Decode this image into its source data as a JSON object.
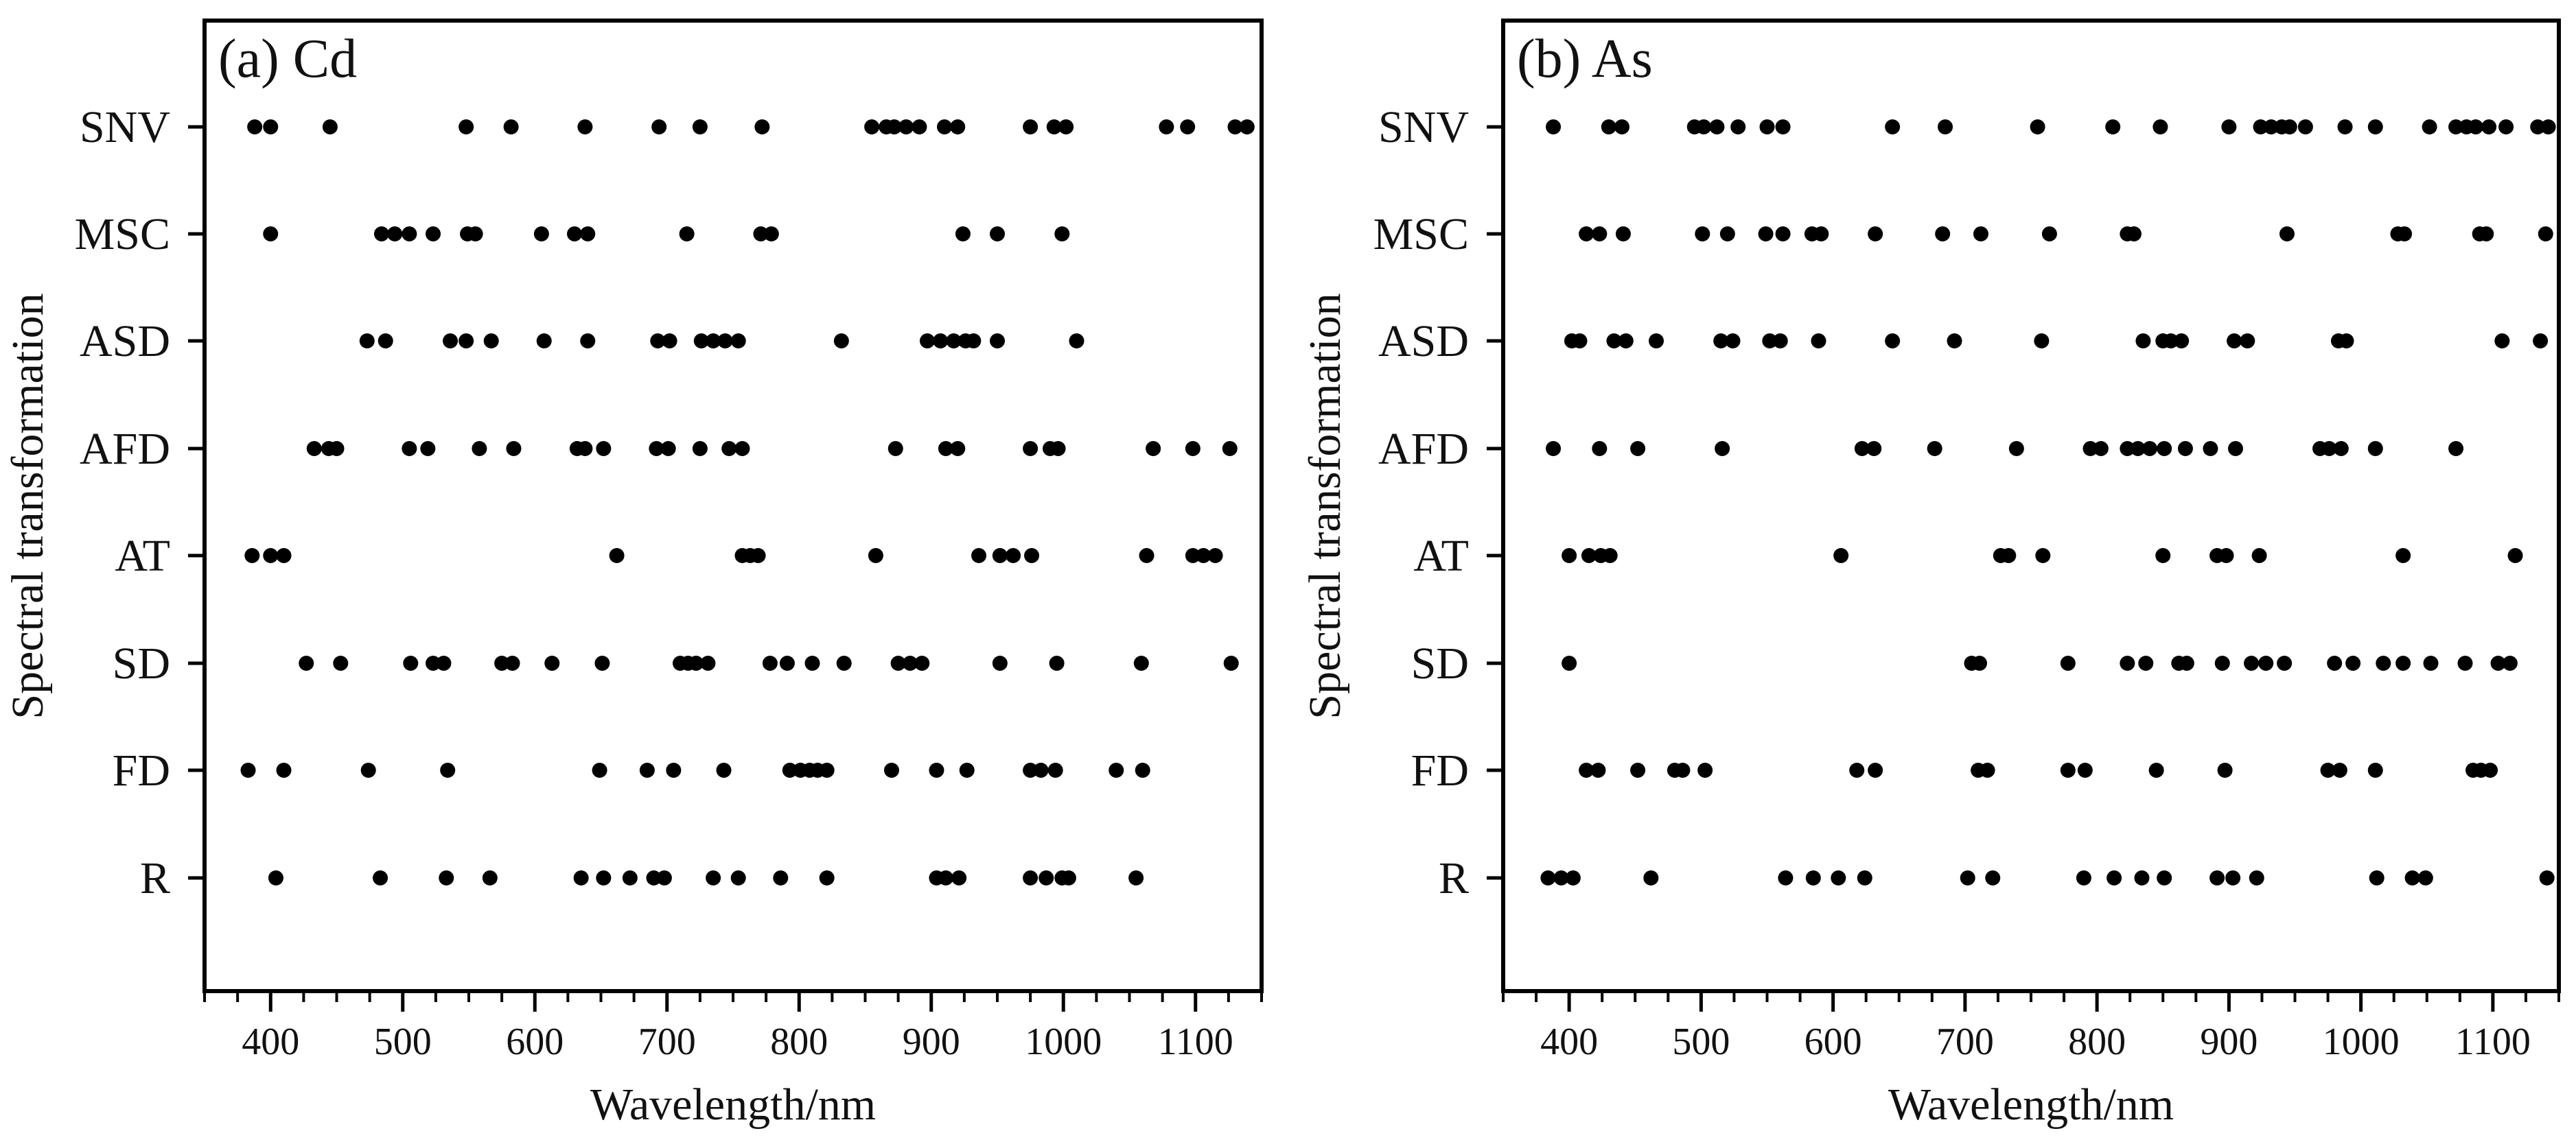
{
  "chart_data": [
    {
      "type": "scatter",
      "title": "(a) Cd",
      "xlabel": "Wavelength/nm",
      "ylabel": "Spectral transformation",
      "xlim": [
        350,
        1150
      ],
      "xticks": [
        400,
        500,
        600,
        700,
        800,
        900,
        1000,
        1100
      ],
      "categories": [
        "SNV",
        "MSC",
        "ASD",
        "AFD",
        "AT",
        "SD",
        "FD",
        "R"
      ],
      "grid": false,
      "series": [
        {
          "category": "SNV",
          "x": [
            388,
            400,
            445,
            548,
            582,
            638,
            694,
            725,
            772,
            855,
            866,
            872,
            881,
            891,
            910,
            920,
            975,
            993,
            1002,
            1078,
            1094,
            1130,
            1139
          ]
        },
        {
          "category": "MSC",
          "x": [
            400,
            484,
            494,
            505,
            523,
            549,
            555,
            605,
            630,
            640,
            715,
            771,
            779,
            924,
            950,
            999
          ]
        },
        {
          "category": "ASD",
          "x": [
            473,
            487,
            536,
            548,
            567,
            607,
            640,
            693,
            702,
            726,
            735,
            744,
            754,
            832,
            897,
            907,
            917,
            926,
            932,
            950,
            1010
          ]
        },
        {
          "category": "AFD",
          "x": [
            433,
            444,
            450,
            505,
            519,
            558,
            584,
            632,
            638,
            652,
            692,
            701,
            725,
            747,
            757,
            873,
            911,
            920,
            975,
            990,
            996,
            1068,
            1098,
            1126
          ]
        },
        {
          "category": "AT",
          "x": [
            386,
            400,
            410,
            662,
            757,
            763,
            769,
            858,
            936,
            952,
            962,
            976,
            1063,
            1098,
            1106,
            1115
          ]
        },
        {
          "category": "SD",
          "x": [
            427,
            453,
            506,
            523,
            531,
            575,
            583,
            613,
            651,
            710,
            716,
            722,
            731,
            778,
            791,
            810,
            834,
            875,
            884,
            893,
            952,
            995,
            1059,
            1127
          ]
        },
        {
          "category": "FD",
          "x": [
            383,
            410,
            474,
            534,
            649,
            685,
            705,
            743,
            793,
            801,
            808,
            814,
            821,
            870,
            904,
            927,
            975,
            983,
            994,
            1040,
            1060
          ]
        },
        {
          "category": "R",
          "x": [
            404,
            483,
            533,
            566,
            635,
            652,
            672,
            690,
            698,
            735,
            754,
            786,
            821,
            904,
            911,
            921,
            975,
            987,
            999,
            1004,
            1055
          ]
        }
      ]
    },
    {
      "type": "scatter",
      "title": "(b) As",
      "xlabel": "Wavelength/nm",
      "ylabel": "Spectral transformation",
      "xlim": [
        350,
        1150
      ],
      "xticks": [
        400,
        500,
        600,
        700,
        800,
        900,
        1000,
        1100
      ],
      "categories": [
        "SNV",
        "MSC",
        "ASD",
        "AFD",
        "AT",
        "SD",
        "FD",
        "R"
      ],
      "grid": false,
      "series": [
        {
          "category": "SNV",
          "x": [
            388,
            430,
            440,
            495,
            502,
            512,
            528,
            550,
            562,
            645,
            685,
            755,
            812,
            848,
            900,
            924,
            932,
            940,
            946,
            958,
            988,
            1011,
            1052,
            1072,
            1080,
            1087,
            1097,
            1110,
            1134,
            1142
          ]
        },
        {
          "category": "MSC",
          "x": [
            413,
            423,
            441,
            501,
            520,
            549,
            562,
            584,
            591,
            632,
            683,
            712,
            764,
            823,
            828,
            944,
            1028,
            1033,
            1090,
            1095,
            1140
          ]
        },
        {
          "category": "ASD",
          "x": [
            402,
            408,
            434,
            443,
            466,
            515,
            524,
            552,
            560,
            589,
            645,
            692,
            758,
            835,
            850,
            856,
            864,
            904,
            914,
            983,
            989,
            1107,
            1136
          ]
        },
        {
          "category": "AFD",
          "x": [
            388,
            423,
            452,
            516,
            622,
            631,
            677,
            739,
            795,
            803,
            823,
            831,
            840,
            851,
            867,
            886,
            905,
            969,
            976,
            985,
            1011,
            1072
          ]
        },
        {
          "category": "AT",
          "x": [
            400,
            415,
            424,
            431,
            606,
            727,
            733,
            759,
            850,
            891,
            898,
            923,
            1032,
            1117
          ]
        },
        {
          "category": "SD",
          "x": [
            400,
            705,
            711,
            778,
            823,
            837,
            862,
            868,
            895,
            917,
            928,
            942,
            980,
            994,
            1017,
            1032,
            1053,
            1079,
            1104,
            1113
          ]
        },
        {
          "category": "FD",
          "x": [
            413,
            422,
            452,
            480,
            486,
            503,
            618,
            632,
            710,
            717,
            778,
            791,
            845,
            897,
            975,
            984,
            1011,
            1085,
            1091,
            1098
          ]
        },
        {
          "category": "R",
          "x": [
            384,
            394,
            403,
            462,
            564,
            585,
            604,
            624,
            702,
            721,
            790,
            813,
            834,
            851,
            891,
            903,
            921,
            1012,
            1039,
            1049,
            1141
          ]
        }
      ]
    }
  ]
}
